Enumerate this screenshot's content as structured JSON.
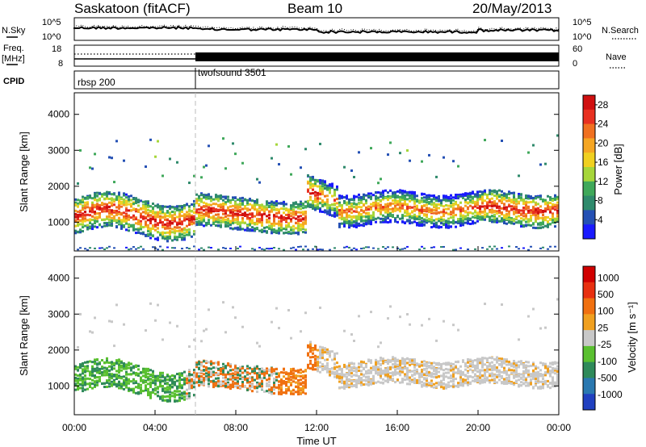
{
  "header": {
    "station": "Saskatoon (fitACF)",
    "beam": "Beam 10",
    "date": "20/May/2013"
  },
  "strips": {
    "nsky_label": "N.Sky",
    "nsky_ticks": [
      "10^5",
      "10^0"
    ],
    "nsearch_label": "N.Search",
    "nsearch_ticks": [
      "10^5",
      "10^0"
    ],
    "freq_label": "Freq.",
    "freq_unit": "[MHz]",
    "freq_ticks": [
      "18",
      "8"
    ],
    "nave_label": "Nave",
    "nave_ticks": [
      "60",
      "0"
    ],
    "cpid_label": "CPID",
    "cpid_segments": [
      {
        "label": "rbsp 200",
        "start_hour": 0
      },
      {
        "label": "twofsound 3501",
        "start_hour": 6
      }
    ]
  },
  "chart_data": [
    {
      "type": "heatmap",
      "name": "power",
      "ylabel": "Slant Range [km]",
      "xlabel": "",
      "xlim": [
        0,
        24
      ],
      "ylim": [
        200,
        4600
      ],
      "y_ticks": [
        1000,
        2000,
        3000,
        4000
      ],
      "colorbar": {
        "label": "Power [dB]",
        "ticks": [
          "4",
          "8",
          "12",
          "16",
          "20",
          "24",
          "28"
        ],
        "range": [
          0,
          30
        ],
        "colors": [
          "#1a1aff",
          "#2450b4",
          "#2f8a6c",
          "#3fa85a",
          "#a6d63a",
          "#f0d020",
          "#f5a623",
          "#f07020",
          "#e83020",
          "#d01010"
        ]
      }
    },
    {
      "type": "heatmap",
      "name": "velocity",
      "ylabel": "Slant Range [km]",
      "xlabel": "Time UT",
      "xlim": [
        0,
        24
      ],
      "ylim": [
        200,
        4600
      ],
      "y_ticks": [
        1000,
        2000,
        3000,
        4000
      ],
      "x_ticks": [
        "00:00",
        "04:00",
        "08:00",
        "12:00",
        "16:00",
        "20:00",
        "00:00"
      ],
      "colorbar": {
        "label": "Velocity [m s⁻¹]",
        "ticks": [
          "1000",
          "500",
          "100",
          "25",
          "-25",
          "-100",
          "-500",
          "-1000"
        ],
        "colors": [
          "#2040c0",
          "#2a78b0",
          "#2f8a5a",
          "#5ac030",
          "#c8c8c8",
          "#f0a020",
          "#f07010",
          "#e83010",
          "#d00000"
        ]
      }
    }
  ],
  "colors": {
    "power_scale": [
      "#1a1aff",
      "#2450b4",
      "#2f8a6c",
      "#3fa85a",
      "#a6d63a",
      "#f0d020",
      "#f5a623",
      "#f07020",
      "#e83020",
      "#d01010"
    ],
    "velocity_scale": [
      "#2040c0",
      "#2a78b0",
      "#2f8a5a",
      "#5ac030",
      "#c8c8c8",
      "#f0a020",
      "#f07010",
      "#e83010",
      "#d00000"
    ]
  }
}
